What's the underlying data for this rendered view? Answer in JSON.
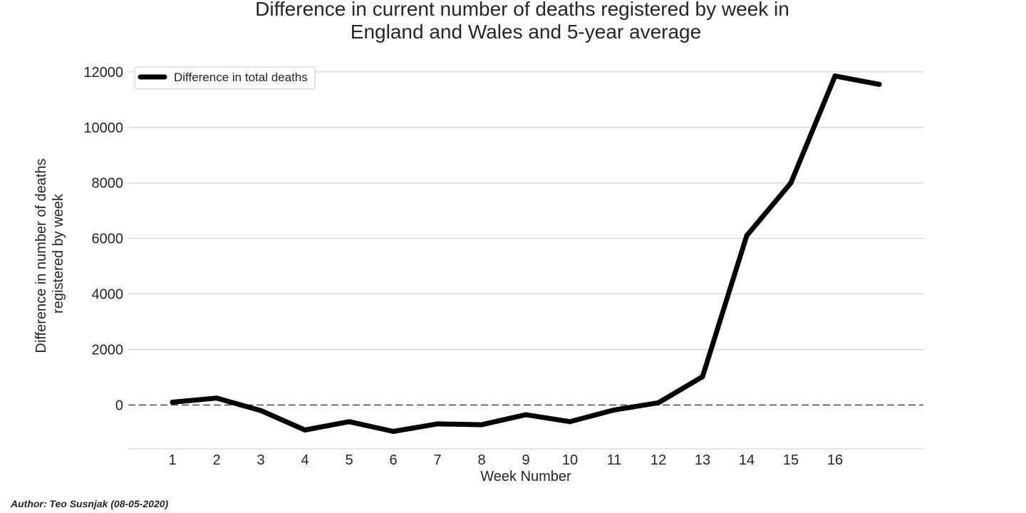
{
  "chart_data": {
    "type": "line",
    "title_lines": [
      "Difference in current number of deaths registered by week in",
      "England and Wales and 5-year average"
    ],
    "xlabel": "Week Number",
    "ylabel_lines": [
      "Difference in number of deaths",
      "registered by week"
    ],
    "x_ticks": [
      1,
      2,
      3,
      4,
      5,
      6,
      7,
      8,
      9,
      10,
      11,
      12,
      13,
      14,
      15,
      16
    ],
    "xlim": [
      0,
      18
    ],
    "y_ticks": [
      0,
      2000,
      4000,
      6000,
      8000,
      10000,
      12000
    ],
    "ylim": [
      -1580,
      12330
    ],
    "grid": true,
    "baseline": {
      "y": 0,
      "style": "dashed",
      "color": "#555555"
    },
    "legend": {
      "position": "top-left"
    },
    "series": [
      {
        "name": "Difference in total deaths",
        "color": "#000000",
        "x": [
          1,
          2,
          3,
          4,
          5,
          6,
          7,
          8,
          9,
          10,
          11,
          12,
          13,
          14,
          15,
          16,
          17
        ],
        "values": [
          100,
          250,
          -200,
          -900,
          -600,
          -950,
          -680,
          -710,
          -350,
          -600,
          -180,
          80,
          1020,
          6100,
          8000,
          11850,
          11550
        ]
      }
    ]
  },
  "footer": {
    "author": "Author: Teo Susnjak (08-05-2020)"
  }
}
